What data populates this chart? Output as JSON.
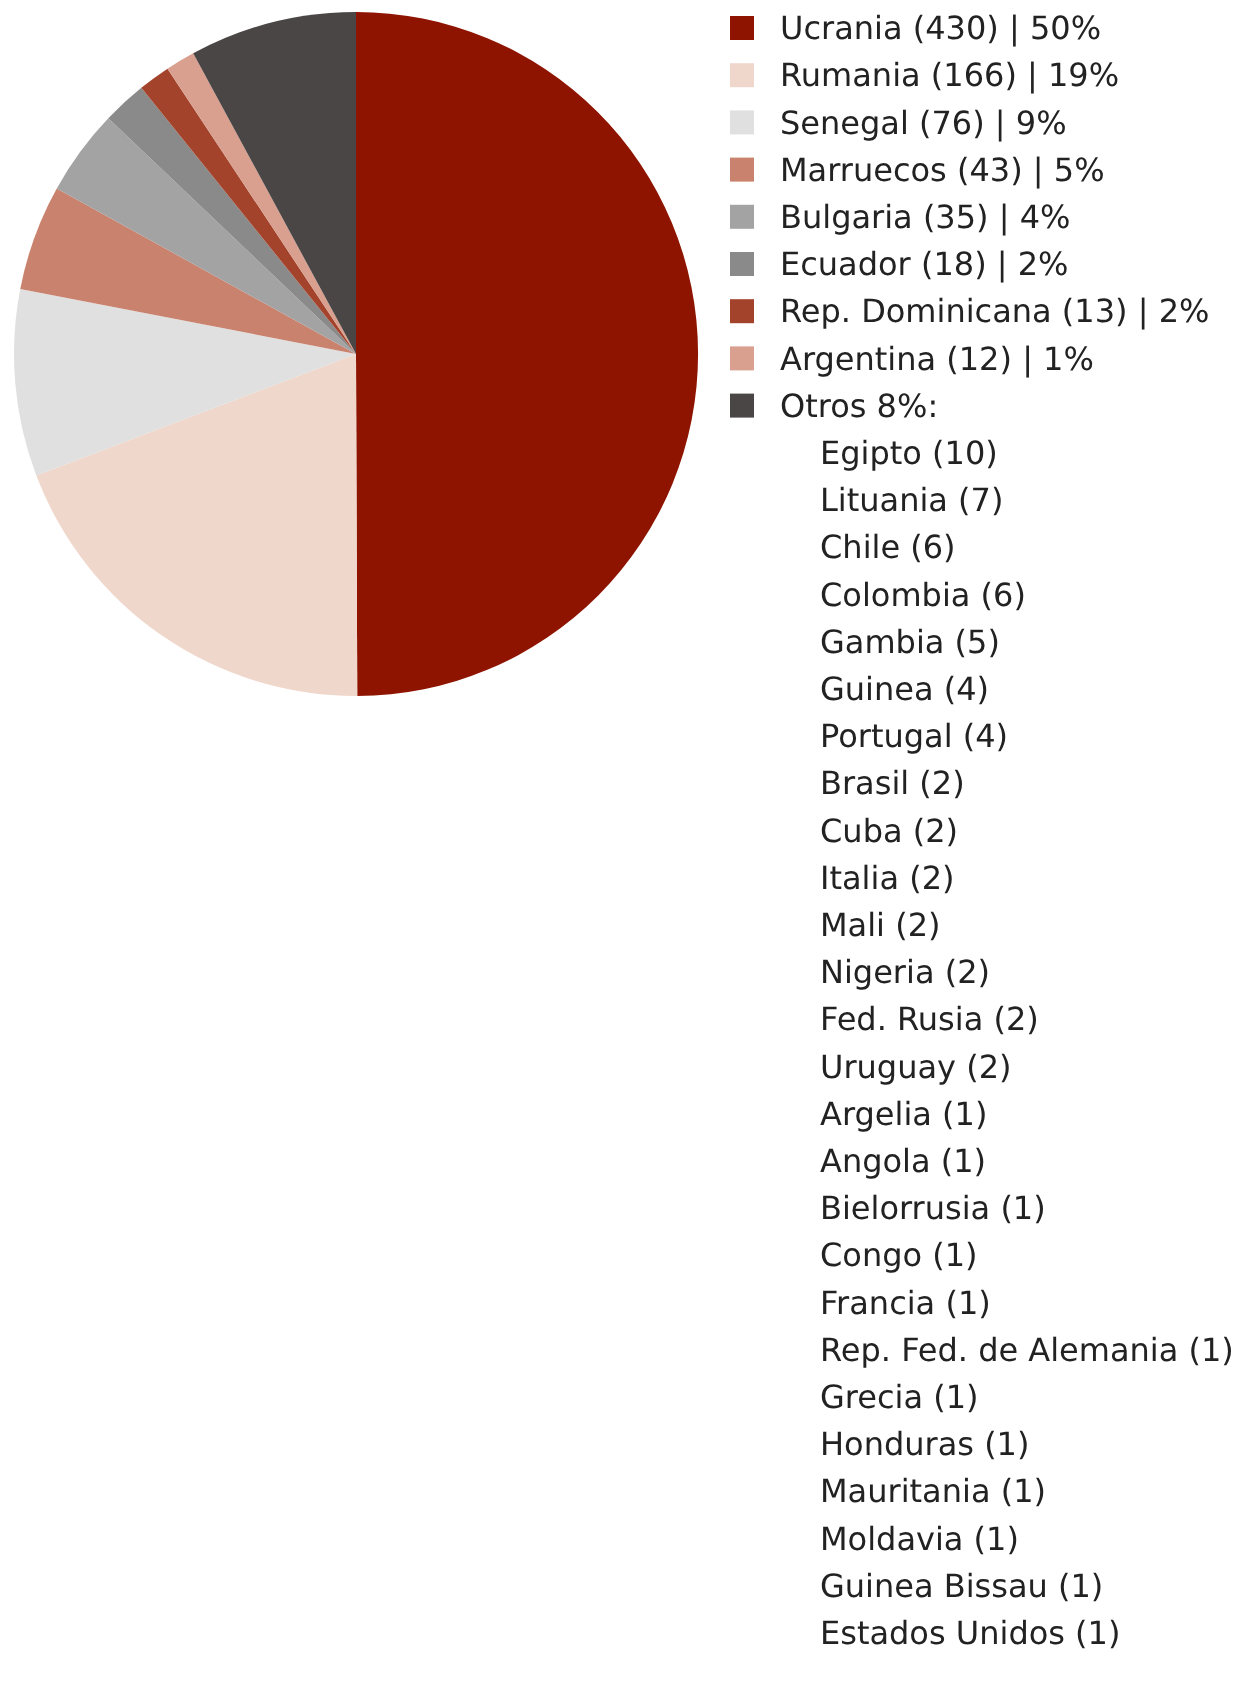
{
  "chart_data": {
    "type": "pie",
    "categories": [
      "Ucrania (430) | 50%",
      "Rumania (166) | 19%",
      "Senegal (76) | 9%",
      "Marruecos (43) | 5%",
      "Bulgaria (35) | 4%",
      "Ecuador (18) | 2%",
      "Rep. Dominicana (13) | 2%",
      "Argentina (12) | 1%",
      "Otros 8%"
    ],
    "values": [
      430,
      166,
      76,
      43,
      35,
      18,
      13,
      12,
      68
    ],
    "colors": [
      "#8e1400",
      "#f0d7cb",
      "#e0e0e0",
      "#c9826d",
      "#a3a3a3",
      "#8a8a8a",
      "#a3432b",
      "#d9a08f",
      "#4b4646"
    ],
    "legend": "right",
    "annotations": [
      ":",
      "Egipto (10)",
      "Lituania (7)",
      "Chile (6)",
      "Colombia (6)",
      "Gambia (5)",
      "Guinea (4)",
      "Portugal (4)",
      "Brasil (2)",
      "Cuba (2)",
      "Italia (2)",
      "Mali (2)",
      "Nigeria (2)",
      "Fed. Rusia (2)",
      "Uruguay (2)",
      "Argelia (1)",
      "Angola (1)",
      "Bielorrusia (1)",
      "Congo (1)",
      "Francia (1)",
      "Rep. Fed. de Alemania (1)",
      "Grecia (1)",
      "Honduras (1)",
      "Mauritania (1)",
      "Moldavia (1)",
      "Guinea Bissau (1)",
      "Estados Unidos (1)"
    ]
  }
}
